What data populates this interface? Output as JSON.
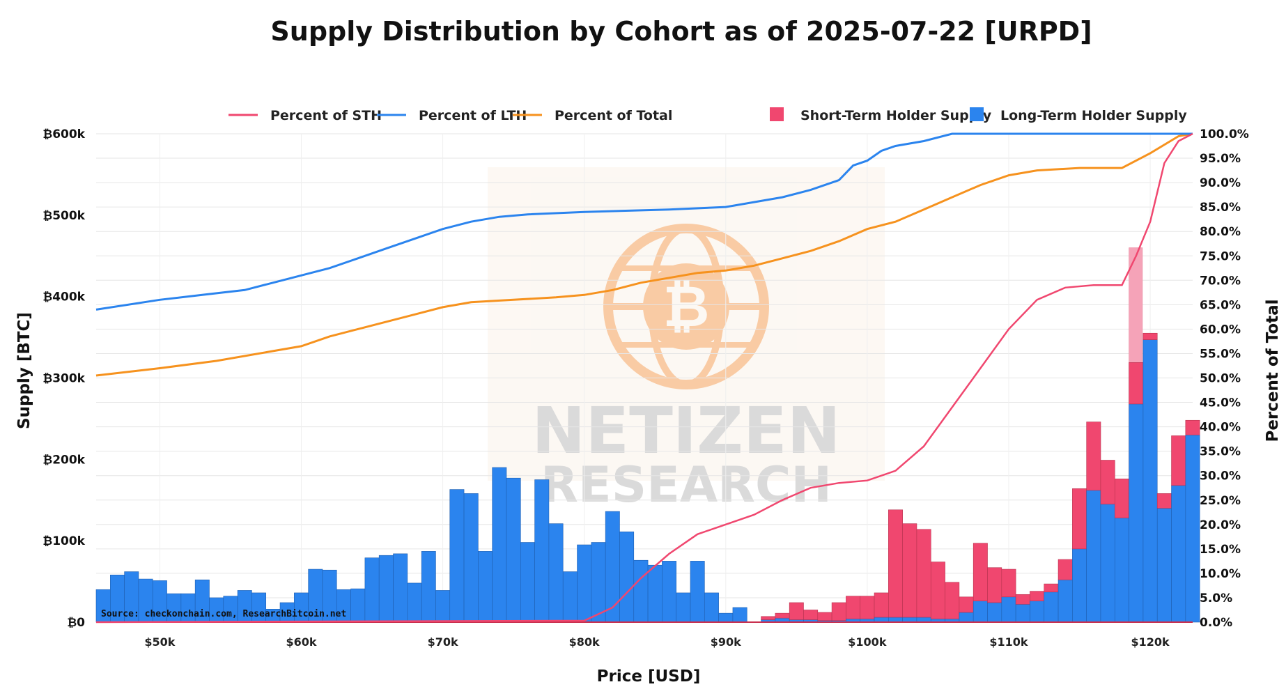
{
  "chart_data": {
    "type": "bar+line",
    "title": "Supply Distribution by Cohort as of 2025-07-22 [URPD]",
    "xlabel": "Price [USD]",
    "ylabel": "Supply [BTC]",
    "y2label": "Percent of Total",
    "xlim": [
      45500,
      123000
    ],
    "ylim": [
      0,
      600000
    ],
    "y2lim": [
      0,
      100
    ],
    "bin_width": 1000,
    "x_ticks": [
      {
        "value": 50000,
        "label": "$50k"
      },
      {
        "value": 60000,
        "label": "$60k"
      },
      {
        "value": 70000,
        "label": "$70k"
      },
      {
        "value": 80000,
        "label": "$80k"
      },
      {
        "value": 90000,
        "label": "$90k"
      },
      {
        "value": 100000,
        "label": "$100k"
      },
      {
        "value": 110000,
        "label": "$110k"
      },
      {
        "value": 120000,
        "label": "$120k"
      }
    ],
    "y_ticks": [
      {
        "value": 0,
        "label": "₿0"
      },
      {
        "value": 100000,
        "label": "₿100k"
      },
      {
        "value": 200000,
        "label": "₿200k"
      },
      {
        "value": 300000,
        "label": "₿300k"
      },
      {
        "value": 400000,
        "label": "₿400k"
      },
      {
        "value": 500000,
        "label": "₿500k"
      },
      {
        "value": 600000,
        "label": "₿600k"
      }
    ],
    "y2_ticks": [
      {
        "value": 0,
        "label": "0.0%"
      },
      {
        "value": 5,
        "label": "5.0%"
      },
      {
        "value": 10,
        "label": "10.0%"
      },
      {
        "value": 15,
        "label": "15.0%"
      },
      {
        "value": 20,
        "label": "20.0%"
      },
      {
        "value": 25,
        "label": "25.0%"
      },
      {
        "value": 30,
        "label": "30.0%"
      },
      {
        "value": 35,
        "label": "35.0%"
      },
      {
        "value": 40,
        "label": "40.0%"
      },
      {
        "value": 45,
        "label": "45.0%"
      },
      {
        "value": 50,
        "label": "50.0%"
      },
      {
        "value": 55,
        "label": "55.0%"
      },
      {
        "value": 60,
        "label": "60.0%"
      },
      {
        "value": 65,
        "label": "65.0%"
      },
      {
        "value": 70,
        "label": "70.0%"
      },
      {
        "value": 75,
        "label": "75.0%"
      },
      {
        "value": 80,
        "label": "80.0%"
      },
      {
        "value": 85,
        "label": "85.0%"
      },
      {
        "value": 90,
        "label": "90.0%"
      },
      {
        "value": 95,
        "label": "95.0%"
      },
      {
        "value": 100,
        "label": "100.0%"
      }
    ],
    "colors": {
      "lth": "#2b84ee",
      "sth": "#f0476f",
      "total": "#f6921e",
      "current_faded": "#f5a3b8"
    },
    "legend": [
      {
        "label": "Percent of STH",
        "kind": "line",
        "color": "#f0476f"
      },
      {
        "label": "Percent of LTH",
        "kind": "line",
        "color": "#2b84ee"
      },
      {
        "label": "Percent of Total",
        "kind": "line",
        "color": "#f6921e"
      },
      {
        "label": "Short-Term Holder Supply",
        "kind": "box",
        "color": "#f0476f"
      },
      {
        "label": "Long-Term Holder Supply",
        "kind": "box",
        "color": "#2b84ee"
      }
    ],
    "bars": [
      {
        "x": 46000,
        "lth": 40000,
        "sth": 0
      },
      {
        "x": 47000,
        "lth": 58000,
        "sth": 0
      },
      {
        "x": 48000,
        "lth": 62000,
        "sth": 0
      },
      {
        "x": 49000,
        "lth": 53000,
        "sth": 0
      },
      {
        "x": 50000,
        "lth": 51000,
        "sth": 0
      },
      {
        "x": 51000,
        "lth": 35000,
        "sth": 0
      },
      {
        "x": 52000,
        "lth": 35000,
        "sth": 0
      },
      {
        "x": 53000,
        "lth": 52000,
        "sth": 0
      },
      {
        "x": 54000,
        "lth": 30000,
        "sth": 0
      },
      {
        "x": 55000,
        "lth": 32000,
        "sth": 0
      },
      {
        "x": 56000,
        "lth": 39000,
        "sth": 0
      },
      {
        "x": 57000,
        "lth": 36000,
        "sth": 0
      },
      {
        "x": 58000,
        "lth": 16000,
        "sth": 0
      },
      {
        "x": 59000,
        "lth": 24000,
        "sth": 0
      },
      {
        "x": 60000,
        "lth": 36000,
        "sth": 0
      },
      {
        "x": 61000,
        "lth": 65000,
        "sth": 0
      },
      {
        "x": 62000,
        "lth": 64000,
        "sth": 0
      },
      {
        "x": 63000,
        "lth": 40000,
        "sth": 0
      },
      {
        "x": 64000,
        "lth": 41000,
        "sth": 0
      },
      {
        "x": 65000,
        "lth": 79000,
        "sth": 0
      },
      {
        "x": 66000,
        "lth": 82000,
        "sth": 0
      },
      {
        "x": 67000,
        "lth": 84000,
        "sth": 0
      },
      {
        "x": 68000,
        "lth": 48000,
        "sth": 0
      },
      {
        "x": 69000,
        "lth": 87000,
        "sth": 0
      },
      {
        "x": 70000,
        "lth": 39000,
        "sth": 0
      },
      {
        "x": 71000,
        "lth": 163000,
        "sth": 0
      },
      {
        "x": 72000,
        "lth": 158000,
        "sth": 0
      },
      {
        "x": 73000,
        "lth": 87000,
        "sth": 0
      },
      {
        "x": 74000,
        "lth": 190000,
        "sth": 0
      },
      {
        "x": 75000,
        "lth": 177000,
        "sth": 0
      },
      {
        "x": 76000,
        "lth": 98000,
        "sth": 0
      },
      {
        "x": 77000,
        "lth": 175000,
        "sth": 0
      },
      {
        "x": 78000,
        "lth": 121000,
        "sth": 0
      },
      {
        "x": 79000,
        "lth": 62000,
        "sth": 0
      },
      {
        "x": 80000,
        "lth": 95000,
        "sth": 0
      },
      {
        "x": 81000,
        "lth": 98000,
        "sth": 0
      },
      {
        "x": 82000,
        "lth": 136000,
        "sth": 0
      },
      {
        "x": 83000,
        "lth": 111000,
        "sth": 0
      },
      {
        "x": 84000,
        "lth": 76000,
        "sth": 0
      },
      {
        "x": 85000,
        "lth": 70000,
        "sth": 0
      },
      {
        "x": 86000,
        "lth": 75000,
        "sth": 0
      },
      {
        "x": 87000,
        "lth": 36000,
        "sth": 0
      },
      {
        "x": 88000,
        "lth": 75000,
        "sth": 0
      },
      {
        "x": 89000,
        "lth": 36000,
        "sth": 0
      },
      {
        "x": 90000,
        "lth": 11000,
        "sth": 0
      },
      {
        "x": 91000,
        "lth": 18000,
        "sth": 0
      },
      {
        "x": 92000,
        "lth": 0,
        "sth": 0
      },
      {
        "x": 93000,
        "lth": 3000,
        "sth": 4000
      },
      {
        "x": 94000,
        "lth": 5000,
        "sth": 6000
      },
      {
        "x": 95000,
        "lth": 3000,
        "sth": 21000
      },
      {
        "x": 96000,
        "lth": 3000,
        "sth": 12000
      },
      {
        "x": 97000,
        "lth": 2000,
        "sth": 10000
      },
      {
        "x": 98000,
        "lth": 2000,
        "sth": 22000
      },
      {
        "x": 99000,
        "lth": 4000,
        "sth": 28000
      },
      {
        "x": 100000,
        "lth": 4000,
        "sth": 28000
      },
      {
        "x": 101000,
        "lth": 6000,
        "sth": 30000
      },
      {
        "x": 102000,
        "lth": 6000,
        "sth": 132000
      },
      {
        "x": 103000,
        "lth": 6000,
        "sth": 115000
      },
      {
        "x": 104000,
        "lth": 6000,
        "sth": 108000
      },
      {
        "x": 105000,
        "lth": 4000,
        "sth": 70000
      },
      {
        "x": 106000,
        "lth": 4000,
        "sth": 45000
      },
      {
        "x": 107000,
        "lth": 12000,
        "sth": 19000
      },
      {
        "x": 108000,
        "lth": 26000,
        "sth": 71000
      },
      {
        "x": 109000,
        "lth": 24000,
        "sth": 43000
      },
      {
        "x": 110000,
        "lth": 31000,
        "sth": 34000
      },
      {
        "x": 111000,
        "lth": 22000,
        "sth": 12000
      },
      {
        "x": 112000,
        "lth": 26000,
        "sth": 12000
      },
      {
        "x": 113000,
        "lth": 37000,
        "sth": 10000
      },
      {
        "x": 114000,
        "lth": 52000,
        "sth": 25000
      },
      {
        "x": 115000,
        "lth": 90000,
        "sth": 74000
      },
      {
        "x": 116000,
        "lth": 162000,
        "sth": 84000
      },
      {
        "x": 117000,
        "lth": 145000,
        "sth": 54000
      },
      {
        "x": 118000,
        "lth": 128000,
        "sth": 48000
      },
      {
        "x": 119000,
        "lth": 268000,
        "sth": 51000
      },
      {
        "x": 120000,
        "lth": 347000,
        "sth": 8000
      },
      {
        "x": 121000,
        "lth": 140000,
        "sth": 18000
      },
      {
        "x": 122000,
        "lth": 168000,
        "sth": 61000
      },
      {
        "x": 123000,
        "lth": 230000,
        "sth": 18000
      }
    ],
    "lth_pct": [
      [
        45500,
        64.0
      ],
      [
        50000,
        66.0
      ],
      [
        53000,
        67.0
      ],
      [
        56000,
        68.0
      ],
      [
        58000,
        69.5
      ],
      [
        60000,
        71.0
      ],
      [
        62000,
        72.5
      ],
      [
        64000,
        74.5
      ],
      [
        66000,
        76.5
      ],
      [
        68000,
        78.5
      ],
      [
        70000,
        80.5
      ],
      [
        72000,
        82.0
      ],
      [
        74000,
        83.0
      ],
      [
        76000,
        83.5
      ],
      [
        80000,
        84.0
      ],
      [
        86000,
        84.5
      ],
      [
        90000,
        85.0
      ],
      [
        92000,
        86.0
      ],
      [
        94000,
        87.0
      ],
      [
        96000,
        88.5
      ],
      [
        98000,
        90.5
      ],
      [
        99000,
        93.5
      ],
      [
        100000,
        94.5
      ],
      [
        101000,
        96.5
      ],
      [
        102000,
        97.5
      ],
      [
        104000,
        98.5
      ],
      [
        106000,
        100.0
      ],
      [
        123000,
        100.0
      ]
    ],
    "sth_pct": [
      [
        45500,
        0.0
      ],
      [
        80000,
        0.3
      ],
      [
        82000,
        3.0
      ],
      [
        84000,
        9.0
      ],
      [
        86000,
        14.0
      ],
      [
        88000,
        18.0
      ],
      [
        90000,
        20.0
      ],
      [
        92000,
        22.0
      ],
      [
        94000,
        25.0
      ],
      [
        96000,
        27.5
      ],
      [
        98000,
        28.5
      ],
      [
        100000,
        29.0
      ],
      [
        102000,
        31.0
      ],
      [
        104000,
        36.0
      ],
      [
        106000,
        44.0
      ],
      [
        108000,
        52.0
      ],
      [
        110000,
        60.0
      ],
      [
        112000,
        66.0
      ],
      [
        114000,
        68.5
      ],
      [
        116000,
        69.0
      ],
      [
        118000,
        69.0
      ],
      [
        119000,
        75.0
      ],
      [
        120000,
        82.0
      ],
      [
        121000,
        94.0
      ],
      [
        122000,
        98.5
      ],
      [
        123000,
        100.0
      ]
    ],
    "total_pct": [
      [
        45500,
        50.5
      ],
      [
        50000,
        52.0
      ],
      [
        54000,
        53.5
      ],
      [
        58000,
        55.5
      ],
      [
        60000,
        56.5
      ],
      [
        62000,
        58.5
      ],
      [
        64000,
        60.0
      ],
      [
        66000,
        61.5
      ],
      [
        68000,
        63.0
      ],
      [
        70000,
        64.5
      ],
      [
        72000,
        65.5
      ],
      [
        75000,
        66.0
      ],
      [
        78000,
        66.5
      ],
      [
        80000,
        67.0
      ],
      [
        82000,
        68.0
      ],
      [
        84000,
        69.5
      ],
      [
        86000,
        70.5
      ],
      [
        88000,
        71.5
      ],
      [
        90000,
        72.0
      ],
      [
        92000,
        73.0
      ],
      [
        94000,
        74.5
      ],
      [
        96000,
        76.0
      ],
      [
        98000,
        78.0
      ],
      [
        100000,
        80.5
      ],
      [
        102000,
        82.0
      ],
      [
        104000,
        84.5
      ],
      [
        106000,
        87.0
      ],
      [
        108000,
        89.5
      ],
      [
        110000,
        91.5
      ],
      [
        112000,
        92.5
      ],
      [
        115000,
        93.0
      ],
      [
        118000,
        93.0
      ],
      [
        120000,
        96.0
      ],
      [
        122000,
        99.5
      ],
      [
        123000,
        100.0
      ]
    ],
    "faded_bars": [
      {
        "x": 119000,
        "sth": 460000
      },
      {
        "x": 120000,
        "sth": 175000
      },
      {
        "x": 121000,
        "sth": 20000
      },
      {
        "x": 122000,
        "sth": 30000
      }
    ]
  },
  "labels": {
    "title": "Supply Distribution by Cohort as of 2025-07-22 [URPD]",
    "xlabel": "Price [USD]",
    "ylabel": "Supply [BTC]",
    "y2label": "Percent of Total",
    "source": "Source: checkonchain.com, ResearchBitcoin.net",
    "watermark_line1": "NETIZEN",
    "watermark_line2": "RESEARCH"
  }
}
